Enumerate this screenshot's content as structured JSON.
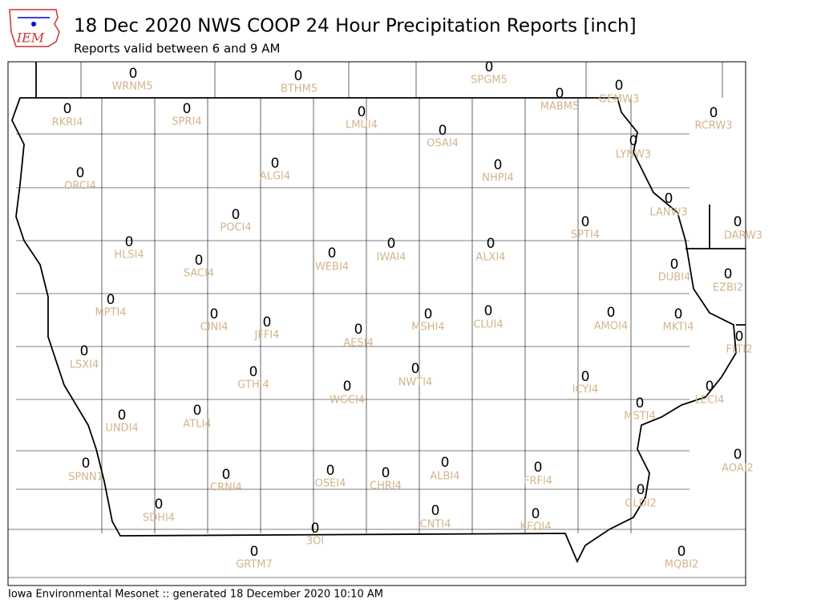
{
  "header": {
    "logo_text": "IEM",
    "title": "18 Dec 2020 NWS COOP 24 Hour Precipitation Reports [inch]",
    "subtitle": "Reports valid between 6 and 9 AM"
  },
  "stations": [
    {
      "id": "WRNM5",
      "value": 0
    },
    {
      "id": "BTHM5",
      "value": 0
    },
    {
      "id": "SPGM5",
      "value": 0
    },
    {
      "id": "MABM5",
      "value": 0
    },
    {
      "id": "GEMW3",
      "value": 0
    },
    {
      "id": "RKRI4",
      "value": 0
    },
    {
      "id": "SPRI4",
      "value": 0
    },
    {
      "id": "LMUI4",
      "value": 0
    },
    {
      "id": "OSAI4",
      "value": 0
    },
    {
      "id": "RCRW3",
      "value": 0
    },
    {
      "id": "LYNW3",
      "value": 0
    },
    {
      "id": "ALGI4",
      "value": 0
    },
    {
      "id": "NHPI4",
      "value": 0
    },
    {
      "id": "ORCI4",
      "value": 0
    },
    {
      "id": "LANW3",
      "value": 0
    },
    {
      "id": "POCI4",
      "value": 0
    },
    {
      "id": "DARW3",
      "value": 0
    },
    {
      "id": "SPTI4",
      "value": 0
    },
    {
      "id": "HLSI4",
      "value": 0
    },
    {
      "id": "IWAI4",
      "value": 0
    },
    {
      "id": "ALXI4",
      "value": 0
    },
    {
      "id": "WEBI4",
      "value": 0
    },
    {
      "id": "SACI4",
      "value": 0
    },
    {
      "id": "DUBI4",
      "value": 0
    },
    {
      "id": "EZBI2",
      "value": 0
    },
    {
      "id": "MPTI4",
      "value": 0
    },
    {
      "id": "CLUI4",
      "value": 0
    },
    {
      "id": "AMOI4",
      "value": 0
    },
    {
      "id": "MSHI4",
      "value": 0
    },
    {
      "id": "CINI4",
      "value": 0
    },
    {
      "id": "MKTI4",
      "value": 0
    },
    {
      "id": "JFFI4",
      "value": 0
    },
    {
      "id": "AESI4",
      "value": 0
    },
    {
      "id": "FLTI2",
      "value": 0
    },
    {
      "id": "LSXI4",
      "value": 0
    },
    {
      "id": "NWTI4",
      "value": 0
    },
    {
      "id": "GTHI4",
      "value": 0
    },
    {
      "id": "ICYI4",
      "value": 0
    },
    {
      "id": "WGCI4",
      "value": 0
    },
    {
      "id": "LECI4",
      "value": 0
    },
    {
      "id": "MSTI4",
      "value": 0
    },
    {
      "id": "ATLI4",
      "value": 0
    },
    {
      "id": "UNDI4",
      "value": 0
    },
    {
      "id": "AOAI2",
      "value": 0
    },
    {
      "id": "ALBI4",
      "value": 0
    },
    {
      "id": "SPNN1",
      "value": 0
    },
    {
      "id": "FRFI4",
      "value": 0
    },
    {
      "id": "OSEI4",
      "value": 0
    },
    {
      "id": "CHRI4",
      "value": 0
    },
    {
      "id": "CRNI4",
      "value": 0
    },
    {
      "id": "GLDI2",
      "value": 0
    },
    {
      "id": "CNTI4",
      "value": 0
    },
    {
      "id": "KEOI4",
      "value": 0
    },
    {
      "id": "SDHI4",
      "value": 0
    },
    {
      "id": "3OI",
      "value": 0
    },
    {
      "id": "MQBI2",
      "value": 0
    },
    {
      "id": "GRTM7",
      "value": 0
    }
  ],
  "footer": "Iowa Environmental Mesonet :: generated 18 December 2020 10:10 AM"
}
